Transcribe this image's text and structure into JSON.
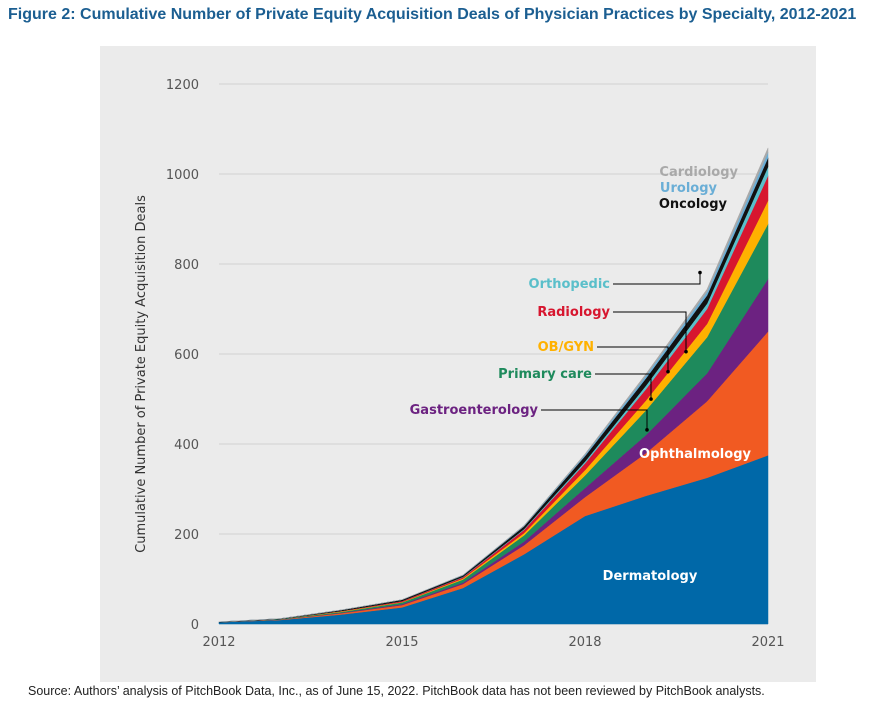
{
  "figure": {
    "title": "Figure 2: Cumulative Number of Private Equity Acquisition Deals of Physician Practices by Specialty, 2012-2021",
    "source": "Source: Authors’ analysis of PitchBook Data, Inc., as of June 15, 2022. PitchBook data has not been reviewed by PitchBook analysts."
  },
  "chart_data": {
    "type": "area",
    "stacked": true,
    "title": "Figure 2: Cumulative Number of Private Equity Acquisition Deals of Physician Practices by Specialty, 2012-2021",
    "xlabel": "",
    "ylabel": "Cumulative Number of Private Equity Acquisition Deals",
    "x": [
      2012,
      2013,
      2014,
      2015,
      2016,
      2017,
      2018,
      2019,
      2020,
      2021
    ],
    "x_ticks": [
      2012,
      2015,
      2018,
      2021
    ],
    "ylim": [
      0,
      1200
    ],
    "y_ticks": [
      0,
      200,
      400,
      600,
      800,
      1000,
      1200
    ],
    "grid": "horizontal",
    "series": [
      {
        "name": "Dermatology",
        "color": "#0068a8",
        "values": [
          4,
          9,
          21,
          37,
          80,
          155,
          240,
          285,
          325,
          375
        ]
      },
      {
        "name": "Ophthalmology",
        "color": "#f15a22",
        "values": [
          0,
          1,
          3,
          5,
          9,
          20,
          42,
          95,
          170,
          275
        ]
      },
      {
        "name": "Gastroenterology",
        "color": "#6c2281",
        "values": [
          0,
          0,
          1,
          2,
          3,
          8,
          20,
          40,
          62,
          117
        ]
      },
      {
        "name": "Primary care",
        "color": "#1e8a5c",
        "values": [
          0,
          1,
          2,
          4,
          7,
          14,
          28,
          55,
          80,
          122
        ]
      },
      {
        "name": "OB/GYN",
        "color": "#ffb100",
        "values": [
          0,
          0,
          1,
          1,
          2,
          5,
          12,
          22,
          30,
          52
        ]
      },
      {
        "name": "Radiology",
        "color": "#d7162f",
        "values": [
          0,
          0,
          1,
          2,
          3,
          7,
          15,
          25,
          33,
          55
        ]
      },
      {
        "name": "Orthopedic",
        "color": "#5abfca",
        "values": [
          0,
          0,
          0,
          0,
          1,
          2,
          4,
          8,
          12,
          20
        ]
      },
      {
        "name": "Oncology",
        "color": "#111111",
        "values": [
          1,
          1,
          2,
          3,
          3,
          6,
          12,
          16,
          18,
          20
        ]
      },
      {
        "name": "Urology",
        "color": "#6aaed6",
        "values": [
          0,
          0,
          0,
          0,
          1,
          1,
          3,
          6,
          8,
          12
        ]
      },
      {
        "name": "Cardiology",
        "color": "#a9a9a9",
        "values": [
          0,
          0,
          0,
          0,
          0,
          1,
          2,
          4,
          6,
          10
        ]
      }
    ],
    "annotations": [
      "Cardiology",
      "Urology",
      "Oncology",
      "Orthopedic",
      "Radiology",
      "OB/GYN",
      "Primary care",
      "Gastroenterology",
      "Ophthalmology",
      "Dermatology"
    ]
  }
}
